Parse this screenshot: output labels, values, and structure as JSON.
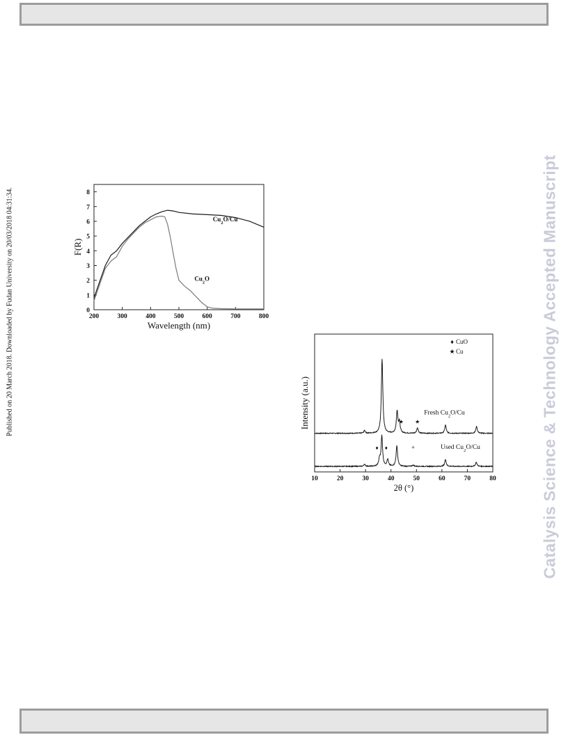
{
  "sidebar": {
    "left_text": "Published on 20 March 2018. Downloaded by Fudan University on 20/03/2018 04:31:34.",
    "right_text": "Catalysis Science & Technology Accepted Manuscript"
  },
  "colors": {
    "dark_line": "#1a1a1a",
    "grey_line": "#7a7a7a",
    "watermark": "#c9cbd8",
    "bar_fill": "#e6e6e6",
    "bar_border": "#9c9c9c"
  },
  "chart_data": [
    {
      "type": "line",
      "xlabel": "Wavelength (nm)",
      "ylabel": "F(R)",
      "xlim": [
        200,
        800
      ],
      "ylim": [
        0,
        8.5
      ],
      "xticks": [
        "200",
        "300",
        "400",
        "500",
        "600",
        "700",
        "800"
      ],
      "yticks": [
        "0",
        "1",
        "2",
        "3",
        "4",
        "5",
        "6",
        "7",
        "8"
      ],
      "series": [
        {
          "name": "Cu2O/Cu",
          "x": [
            200,
            220,
            240,
            260,
            280,
            300,
            320,
            340,
            360,
            380,
            400,
            420,
            440,
            460,
            480,
            500,
            550,
            600,
            650,
            700,
            750,
            800
          ],
          "y": [
            0.8,
            1.9,
            3.0,
            3.7,
            4.0,
            4.5,
            4.9,
            5.3,
            5.7,
            6.0,
            6.3,
            6.5,
            6.65,
            6.75,
            6.7,
            6.6,
            6.5,
            6.45,
            6.4,
            6.25,
            6.0,
            5.6
          ]
        },
        {
          "name": "Cu2O",
          "x": [
            200,
            220,
            240,
            260,
            280,
            300,
            320,
            340,
            360,
            380,
            400,
            420,
            440,
            450,
            460,
            470,
            480,
            490,
            500,
            520,
            540,
            560,
            580,
            600,
            620,
            650,
            700,
            800
          ],
          "y": [
            0.6,
            1.7,
            2.8,
            3.3,
            3.6,
            4.3,
            4.8,
            5.2,
            5.6,
            5.9,
            6.1,
            6.3,
            6.35,
            6.3,
            5.8,
            4.9,
            3.8,
            2.8,
            2.0,
            1.6,
            1.3,
            0.9,
            0.5,
            0.2,
            0.1,
            0.07,
            0.05,
            0.05
          ]
        }
      ]
    },
    {
      "type": "line",
      "xlabel": "2θ (°)",
      "ylabel": "Intensity (a.u.)",
      "xlim": [
        10,
        80
      ],
      "xticks": [
        "10",
        "20",
        "30",
        "40",
        "50",
        "60",
        "70",
        "80"
      ],
      "legend": [
        {
          "symbol": "♦",
          "label": "CuO"
        },
        {
          "symbol": "★",
          "label": "Cu"
        }
      ],
      "legend_position": "top-right",
      "series": [
        {
          "name": "Fresh Cu2O/Cu",
          "baseline": 0.28,
          "peaks": [
            {
              "x": 29.6,
              "h": 0.02
            },
            {
              "x": 36.5,
              "h": 0.54
            },
            {
              "x": 42.4,
              "h": 0.16
            },
            {
              "x": 43.3,
              "h": 0.08
            },
            {
              "x": 50.4,
              "h": 0.04
            },
            {
              "x": 61.4,
              "h": 0.06
            },
            {
              "x": 73.6,
              "h": 0.05
            }
          ],
          "markers": [
            {
              "x": 44.0,
              "symbol": "★"
            },
            {
              "x": 50.4,
              "symbol": "★"
            }
          ]
        },
        {
          "name": "Used Cu2O/Cu",
          "baseline": 0.04,
          "peaks": [
            {
              "x": 29.6,
              "h": 0.015
            },
            {
              "x": 35.5,
              "h": 0.05
            },
            {
              "x": 36.4,
              "h": 0.22
            },
            {
              "x": 38.7,
              "h": 0.05
            },
            {
              "x": 42.3,
              "h": 0.15
            },
            {
              "x": 48.7,
              "h": 0.01
            },
            {
              "x": 61.4,
              "h": 0.05
            },
            {
              "x": 73.5,
              "h": 0.03
            }
          ],
          "markers": [
            {
              "x": 34.5,
              "symbol": "♦"
            },
            {
              "x": 38.1,
              "symbol": "♦"
            },
            {
              "x": 48.7,
              "symbol": "+"
            }
          ]
        }
      ]
    }
  ]
}
